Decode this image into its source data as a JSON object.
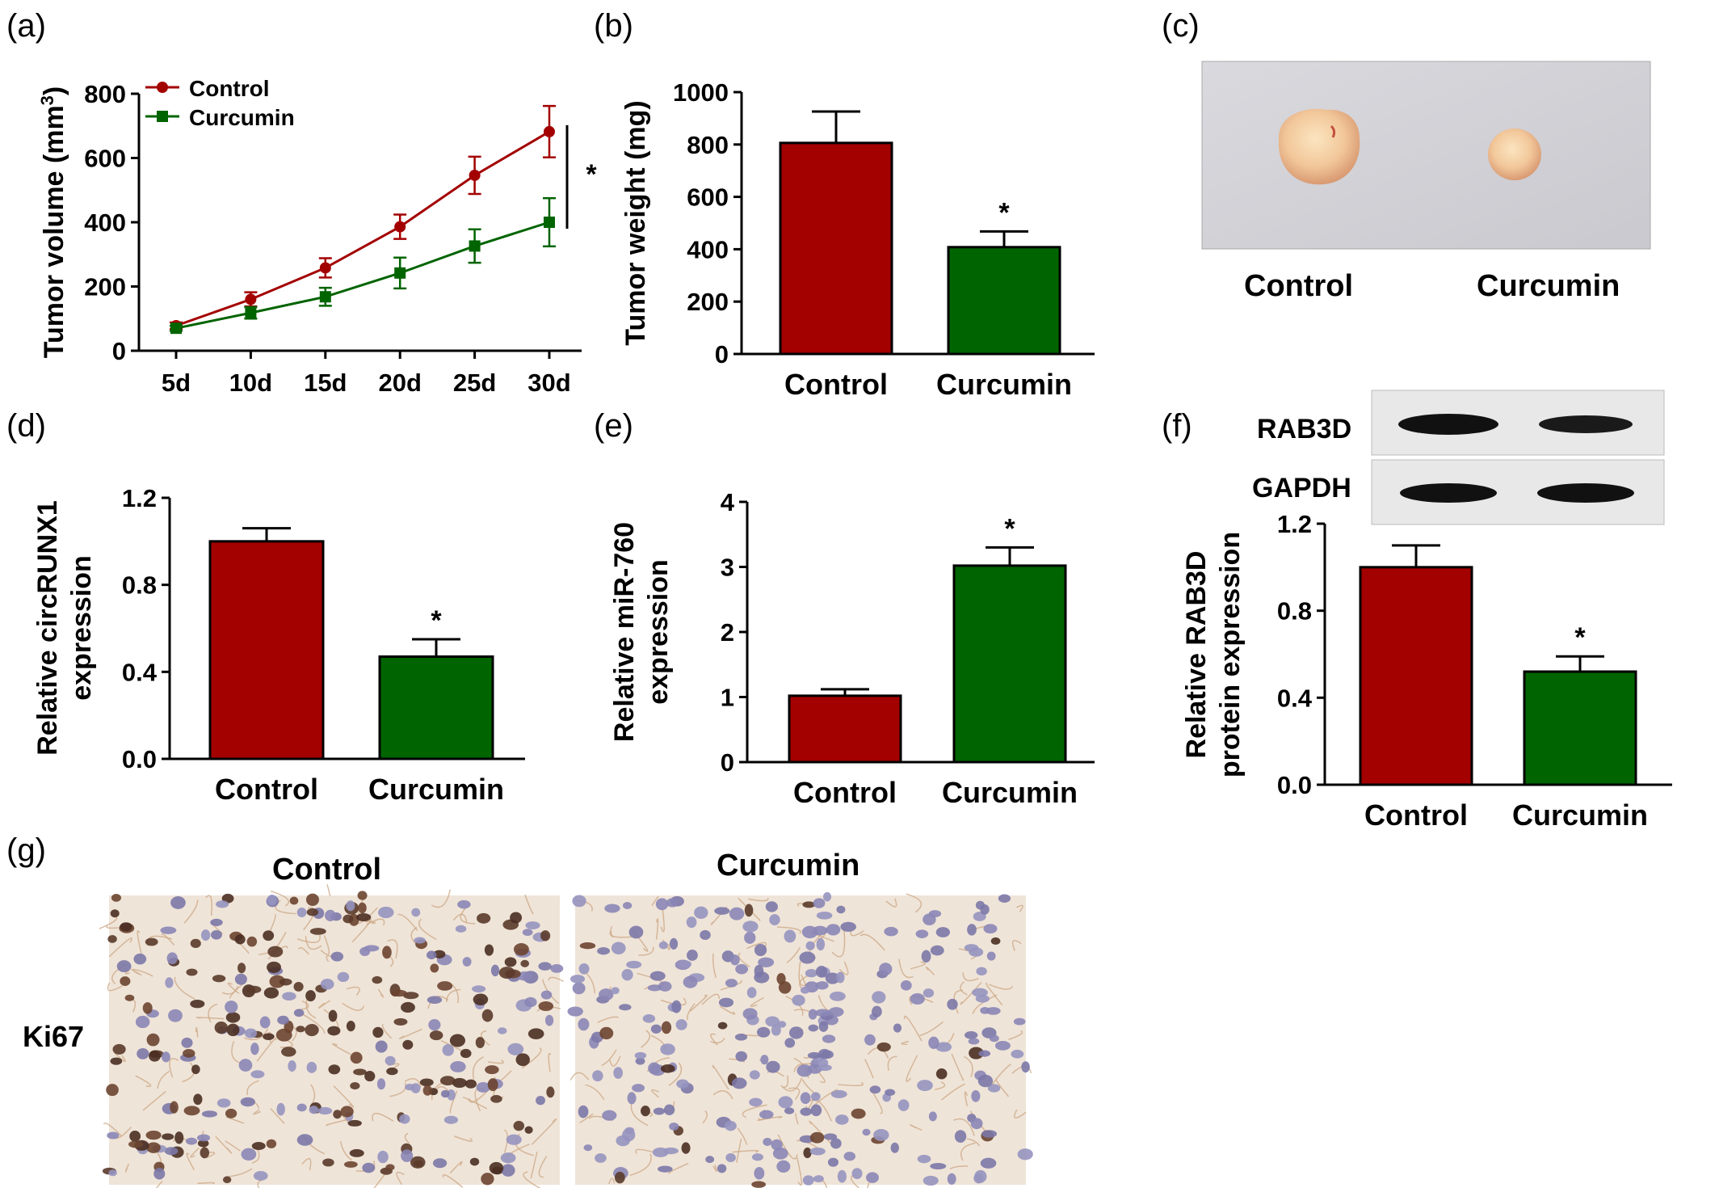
{
  "panel_labels": {
    "a": "(a)",
    "b": "(b)",
    "c": "(c)",
    "d": "(d)",
    "e": "(e)",
    "f": "(f)",
    "g": "(g)"
  },
  "colors": {
    "control": "#a30000",
    "curcumin": "#006400",
    "axis": "#000000"
  },
  "chart_data": [
    {
      "id": "a",
      "type": "line",
      "categories": [
        "5d",
        "10d",
        "15d",
        "20d",
        "25d",
        "30d"
      ],
      "series": [
        {
          "name": "Control",
          "values": [
            78,
            160,
            258,
            386,
            546,
            682
          ],
          "errors": [
            10,
            22,
            30,
            38,
            58,
            80
          ]
        },
        {
          "name": "Curcumin",
          "values": [
            70,
            118,
            168,
            242,
            326,
            400
          ],
          "errors": [
            8,
            18,
            28,
            48,
            52,
            75
          ]
        }
      ],
      "ylabel": "Tumor volume (mm",
      "ylabel_sup": "3",
      "ylabel_close": ")",
      "ylim": [
        0,
        800
      ],
      "yticks": [
        "0",
        "200",
        "400",
        "600",
        "800"
      ],
      "significance": "*",
      "legend": "top-left"
    },
    {
      "id": "b",
      "type": "bar",
      "categories": [
        "Control",
        "Curcumin"
      ],
      "values": [
        806,
        408
      ],
      "errors": [
        120,
        60
      ],
      "ylabel": "Tumor weight (mg)",
      "ylim": [
        0,
        1000
      ],
      "yticks": [
        "0",
        "200",
        "400",
        "600",
        "800",
        "1000"
      ],
      "stars": [
        "",
        "*"
      ]
    },
    {
      "id": "d",
      "type": "bar",
      "categories": [
        "Control",
        "Curcumin"
      ],
      "values": [
        1.0,
        0.47
      ],
      "errors": [
        0.06,
        0.08
      ],
      "ylabel": "Relative circRUNX1",
      "ylabel2": "expression",
      "ylim": [
        0,
        1.2
      ],
      "yticks": [
        "0.0",
        "0.4",
        "0.8",
        "1.2"
      ],
      "stars": [
        "",
        "*"
      ]
    },
    {
      "id": "e",
      "type": "bar",
      "categories": [
        "Control",
        "Curcumin"
      ],
      "values": [
        1.02,
        3.02
      ],
      "errors": [
        0.1,
        0.28
      ],
      "ylabel": "Relative miR-760",
      "ylabel2": "expression",
      "ylim": [
        0,
        4
      ],
      "yticks": [
        "0",
        "1",
        "2",
        "3",
        "4"
      ],
      "stars": [
        "",
        "*"
      ]
    },
    {
      "id": "f",
      "type": "bar",
      "categories": [
        "Control",
        "Curcumin"
      ],
      "values": [
        1.0,
        0.52
      ],
      "errors": [
        0.1,
        0.07
      ],
      "ylabel": "Relative RAB3D",
      "ylabel2": "protein expression",
      "ylim": [
        0,
        1.2
      ],
      "yticks": [
        "0.0",
        "0.4",
        "0.8",
        "1.2"
      ],
      "stars": [
        "",
        "*"
      ]
    }
  ],
  "panel_c": {
    "labels": [
      "Control",
      "Curcumin"
    ]
  },
  "panel_f_blot": {
    "rows": [
      "RAB3D",
      "GAPDH"
    ]
  },
  "panel_g": {
    "columns": [
      "Control",
      "Curcumin"
    ],
    "row_label": "Ki67"
  }
}
